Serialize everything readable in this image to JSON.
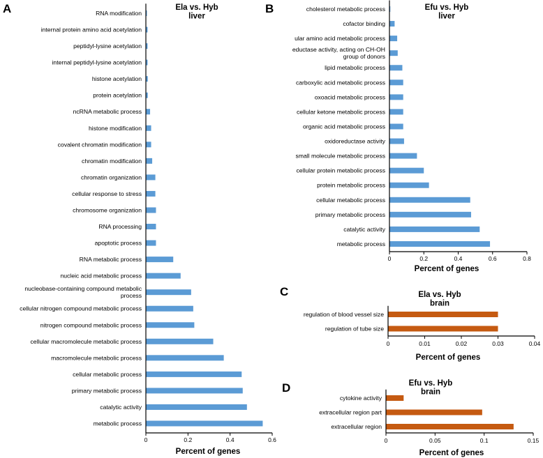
{
  "chart_data": [
    {
      "panel": "A",
      "type": "bar",
      "orientation": "horizontal",
      "title": "Ela vs. Hyb\nliver",
      "xlabel": "Percent of genes",
      "ylabel": "",
      "xlim": [
        0,
        0.6
      ],
      "xticks": [
        0,
        0.2,
        0.4,
        0.6
      ],
      "xtick_labels": [
        "0",
        "0.2",
        "0.4",
        "0.6"
      ],
      "color": "#5B9BD5",
      "categories": [
        "RNA modification",
        "internal protein amino acid acetylation",
        "peptidyl-lysine acetylation",
        "internal peptidyl-lysine acetylation",
        "histone acetylation",
        "protein acetylation",
        "ncRNA metabolic process",
        "histone modification",
        "covalent chromatin modification",
        "chromatin modification",
        "chromatin organization",
        "cellular response to stress",
        "chromosome organization",
        "RNA processing",
        "apoptotic process",
        "RNA metabolic process",
        "nucleic acid metabolic process",
        "nucleobase-containing compound metabolic\nprocess",
        "cellular nitrogen compound metabolic process",
        "nitrogen compound metabolic process",
        "cellular macromolecule metabolic process",
        "macromolecule metabolic process",
        "cellular metabolic process",
        "primary metabolic process",
        "catalytic activity",
        "metabolic process"
      ],
      "values": [
        0.005,
        0.008,
        0.008,
        0.008,
        0.009,
        0.009,
        0.02,
        0.025,
        0.025,
        0.03,
        0.045,
        0.045,
        0.048,
        0.048,
        0.048,
        0.13,
        0.165,
        0.215,
        0.225,
        0.23,
        0.32,
        0.37,
        0.455,
        0.46,
        0.48,
        0.555
      ]
    },
    {
      "panel": "B",
      "type": "bar",
      "orientation": "horizontal",
      "title": "Efu vs. Hyb\nliver",
      "xlabel": "Percent of genes",
      "ylabel": "",
      "xlim": [
        0,
        0.8
      ],
      "xticks": [
        0,
        0.2,
        0.4,
        0.6,
        0.8
      ],
      "xtick_labels": [
        "0",
        "0.2",
        "0.4",
        "0.6",
        "0.8"
      ],
      "color": "#5B9BD5",
      "categories": [
        "cholesterol metabolic process",
        "cofactor binding",
        "ular amino acid metabolic process",
        "eductase activity, acting on CH-OH\ngroup of donors",
        "lipid metabolic process",
        "carboxylic acid metabolic process",
        "oxoacid metabolic process",
        "cellular ketone metabolic process",
        "organic acid metabolic process",
        "oxidoreductase activity",
        "small molecule metabolic process",
        "cellular protein metabolic process",
        "protein metabolic process",
        "cellular metabolic process",
        "primary metabolic process",
        "catalytic activity",
        "metabolic process"
      ],
      "values": [
        0.005,
        0.03,
        0.045,
        0.048,
        0.075,
        0.08,
        0.08,
        0.08,
        0.08,
        0.085,
        0.16,
        0.2,
        0.23,
        0.47,
        0.475,
        0.525,
        0.585
      ]
    },
    {
      "panel": "C",
      "type": "bar",
      "orientation": "horizontal",
      "title": "Ela vs. Hyb\nbrain",
      "xlabel": "Percent of genes",
      "ylabel": "",
      "xlim": [
        0,
        0.04
      ],
      "xticks": [
        0,
        0.01,
        0.02,
        0.03,
        0.04
      ],
      "xtick_labels": [
        "0",
        "0.01",
        "0.02",
        "0.03",
        "0.04"
      ],
      "color": "#C55A11",
      "categories": [
        "regulation of blood vessel size",
        "regulation of tube size"
      ],
      "values": [
        0.03,
        0.03
      ]
    },
    {
      "panel": "D",
      "type": "bar",
      "orientation": "horizontal",
      "title": "Efu vs. Hyb\nbrain",
      "xlabel": "Percent of genes",
      "ylabel": "",
      "xlim": [
        0,
        0.15
      ],
      "xticks": [
        0,
        0.05,
        0.1,
        0.15
      ],
      "xtick_labels": [
        "0",
        "0.05",
        "0.1",
        "0.15"
      ],
      "color": "#C55A11",
      "categories": [
        "cytokine activity",
        "extracellular region part",
        "extracellular region"
      ],
      "values": [
        0.018,
        0.098,
        0.13
      ]
    }
  ]
}
